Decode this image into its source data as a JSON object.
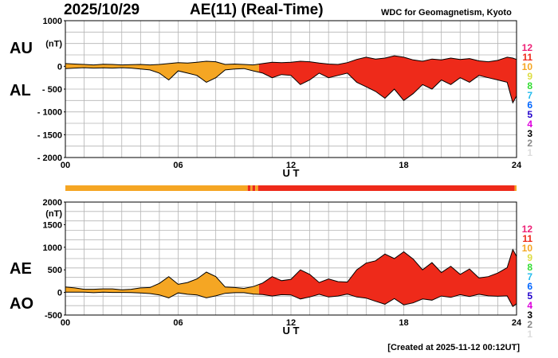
{
  "header": {
    "date": "2025/10/29",
    "title": "AE(11) (Real-Time)",
    "source": "WDC for Geomagnetism, Kyoto",
    "created": "[Created at 2025-11-12 00:12UT]"
  },
  "colors": {
    "c1": "#dddddd",
    "c2": "#888888",
    "c3": "#000000",
    "c4": "#dd00dd",
    "c5": "#2200cc",
    "c6": "#0066ff",
    "c7": "#22bbee",
    "c8": "#33dd33",
    "c9": "#dddd44",
    "c10": "#f5a623",
    "c11": "#ee2a1a",
    "c12": "#ee2277"
  },
  "legend": [
    "12",
    "11",
    "10",
    "9",
    "8",
    "7",
    "6",
    "5",
    "4",
    "3",
    "2",
    "1"
  ],
  "chart_data": [
    {
      "id": "au_al",
      "type": "area",
      "labels": [
        "AU",
        "AL"
      ],
      "y_unit": "(nT)",
      "ylim": [
        -2000,
        1000
      ],
      "yticks": [
        "1000",
        "(nT)",
        "0",
        "- 500",
        "- 1000",
        "- 1500",
        "- 2000"
      ],
      "ytick_values": [
        1000,
        500,
        0,
        -500,
        -1000,
        -1500,
        -2000
      ],
      "xlim": [
        0,
        24
      ],
      "xticks": [
        "00",
        "06",
        "12",
        "18",
        "24"
      ],
      "xtick_values": [
        0,
        6,
        12,
        18,
        24
      ],
      "xlabel": "U T",
      "grid": true,
      "series": [
        {
          "name": "AU",
          "x": [
            0,
            0.5,
            1,
            1.5,
            2,
            2.5,
            3,
            3.5,
            4,
            4.5,
            5,
            5.5,
            6,
            6.5,
            7,
            7.5,
            8,
            8.5,
            9,
            9.5,
            10,
            10.5,
            11,
            11.5,
            12,
            12.5,
            13,
            13.5,
            14,
            14.5,
            15,
            15.5,
            16,
            16.5,
            17,
            17.5,
            18,
            18.5,
            19,
            19.5,
            20,
            20.5,
            21,
            21.5,
            22,
            22.5,
            23,
            23.5,
            23.8,
            24
          ],
          "values": [
            60,
            50,
            40,
            30,
            45,
            40,
            30,
            35,
            40,
            30,
            40,
            60,
            80,
            70,
            90,
            110,
            100,
            40,
            50,
            40,
            30,
            60,
            90,
            80,
            90,
            110,
            100,
            70,
            50,
            40,
            80,
            150,
            200,
            160,
            180,
            230,
            200,
            140,
            110,
            160,
            140,
            180,
            150,
            170,
            120,
            100,
            130,
            200,
            180,
            150
          ]
        },
        {
          "name": "AL",
          "x": [
            0,
            0.5,
            1,
            1.5,
            2,
            2.5,
            3,
            3.5,
            4,
            4.5,
            5,
            5.5,
            6,
            6.5,
            7,
            7.5,
            8,
            8.5,
            9,
            9.5,
            10,
            10.5,
            11,
            11.5,
            12,
            12.5,
            13,
            13.5,
            14,
            14.5,
            15,
            15.5,
            16,
            16.5,
            17,
            17.5,
            18,
            18.5,
            19,
            19.5,
            20,
            20.5,
            21,
            21.5,
            22,
            22.5,
            23,
            23.5,
            23.8,
            24
          ],
          "values": [
            -50,
            -40,
            -30,
            -40,
            -35,
            -40,
            -30,
            -40,
            -60,
            -80,
            -150,
            -300,
            -100,
            -150,
            -200,
            -350,
            -250,
            -80,
            -60,
            -50,
            -100,
            -150,
            -250,
            -180,
            -200,
            -400,
            -300,
            -150,
            -250,
            -200,
            -150,
            -350,
            -450,
            -550,
            -700,
            -500,
            -750,
            -600,
            -400,
            -500,
            -300,
            -400,
            -250,
            -350,
            -200,
            -250,
            -300,
            -350,
            -800,
            -650
          ]
        }
      ]
    },
    {
      "id": "ae_ao",
      "type": "area",
      "labels": [
        "AE",
        "AO"
      ],
      "y_unit": "(nT)",
      "ylim": [
        -500,
        2000
      ],
      "yticks": [
        "2000",
        "(nT)",
        "1500",
        "1000",
        "500",
        "0",
        "-500"
      ],
      "ytick_values": [
        2000,
        1750,
        1500,
        1000,
        500,
        0,
        -500
      ],
      "xlim": [
        0,
        24
      ],
      "xticks": [
        "00",
        "06",
        "12",
        "18",
        "24"
      ],
      "xtick_values": [
        0,
        6,
        12,
        18,
        24
      ],
      "xlabel": "U T",
      "grid": true,
      "series": [
        {
          "name": "AE",
          "x": [
            0,
            0.5,
            1,
            1.5,
            2,
            2.5,
            3,
            3.5,
            4,
            4.5,
            5,
            5.5,
            6,
            6.5,
            7,
            7.5,
            8,
            8.5,
            9,
            9.5,
            10,
            10.5,
            11,
            11.5,
            12,
            12.5,
            13,
            13.5,
            14,
            14.5,
            15,
            15.5,
            16,
            16.5,
            17,
            17.5,
            18,
            18.5,
            19,
            19.5,
            20,
            20.5,
            21,
            21.5,
            22,
            22.5,
            23,
            23.5,
            23.8,
            24
          ],
          "values": [
            120,
            100,
            70,
            70,
            80,
            80,
            60,
            70,
            100,
            110,
            200,
            350,
            180,
            220,
            300,
            450,
            350,
            120,
            110,
            90,
            130,
            210,
            350,
            260,
            290,
            500,
            400,
            220,
            300,
            240,
            230,
            500,
            650,
            700,
            850,
            750,
            900,
            740,
            500,
            660,
            440,
            580,
            400,
            520,
            320,
            350,
            430,
            550,
            950,
            800
          ]
        },
        {
          "name": "AO",
          "x": [
            0,
            0.5,
            1,
            1.5,
            2,
            2.5,
            3,
            3.5,
            4,
            4.5,
            5,
            5.5,
            6,
            6.5,
            7,
            7.5,
            8,
            8.5,
            9,
            9.5,
            10,
            10.5,
            11,
            11.5,
            12,
            12.5,
            13,
            13.5,
            14,
            14.5,
            15,
            15.5,
            16,
            16.5,
            17,
            17.5,
            18,
            18.5,
            19,
            19.5,
            20,
            20.5,
            21,
            21.5,
            22,
            22.5,
            23,
            23.5,
            23.8,
            24
          ],
          "values": [
            5,
            5,
            5,
            -5,
            5,
            0,
            0,
            -3,
            -10,
            -25,
            -55,
            -120,
            -10,
            -40,
            -55,
            -120,
            -75,
            -20,
            -5,
            -5,
            -35,
            -45,
            -80,
            -50,
            -55,
            -145,
            -100,
            -40,
            -100,
            -80,
            -35,
            -100,
            -125,
            -195,
            -260,
            -135,
            -275,
            -230,
            -145,
            -170,
            -80,
            -110,
            -50,
            -90,
            -40,
            -75,
            -85,
            -75,
            -310,
            -250
          ]
        }
      ]
    }
  ],
  "activity_bar": [
    {
      "from": 0,
      "to": 9.7,
      "level": "10"
    },
    {
      "from": 9.7,
      "to": 9.85,
      "level": "11"
    },
    {
      "from": 9.85,
      "to": 9.95,
      "level": "10"
    },
    {
      "from": 9.95,
      "to": 10.1,
      "level": "11"
    },
    {
      "from": 10.1,
      "to": 10.25,
      "level": "10"
    },
    {
      "from": 10.25,
      "to": 23.9,
      "level": "11"
    },
    {
      "from": 23.9,
      "to": 24,
      "level": "10"
    }
  ],
  "fill_segments": [
    {
      "from": 0,
      "to": 10.3,
      "level": "10"
    },
    {
      "from": 10.3,
      "to": 24,
      "level": "11"
    }
  ]
}
